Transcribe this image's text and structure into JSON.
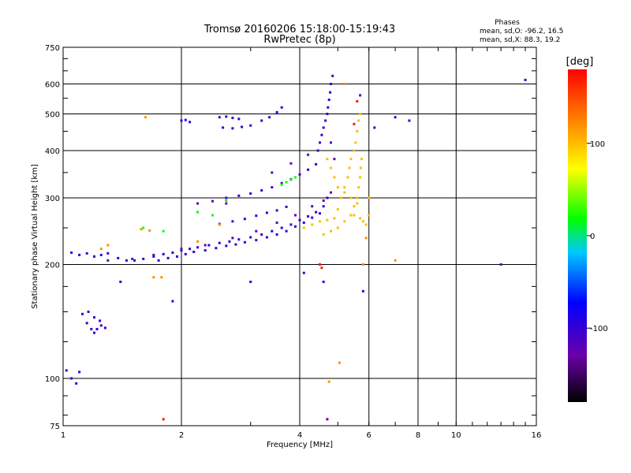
{
  "chart_data": {
    "type": "scatter",
    "title": "Tromsø 20160206 15:18:00-15:19:43",
    "subtitle": "RwPretec (8p)",
    "xlabel": "Frequency [MHz]",
    "ylabel": "Stationary phase Virtual Height [km]",
    "x_scale": "log",
    "y_scale": "log",
    "xlim": [
      1,
      16
    ],
    "ylim": [
      75,
      750
    ],
    "x_ticks": [
      1,
      2,
      4,
      6,
      8,
      10,
      16
    ],
    "x_tick_labels": [
      "1",
      "2",
      "4",
      "6",
      "8",
      "10",
      "16"
    ],
    "y_ticks": [
      75,
      100,
      200,
      300,
      400,
      500,
      600,
      750
    ],
    "y_tick_labels": [
      "75",
      "100",
      "200",
      "300",
      "400",
      "500",
      "600",
      "750"
    ],
    "grid": true,
    "info_box": {
      "heading": "Phases",
      "line_o": "mean, sd,O: -96.2, 16.5",
      "line_x": "mean, sd,X:  88.3, 19.2"
    },
    "colorbar": {
      "label": "[deg]",
      "range": [
        -180,
        180
      ],
      "ticks": [
        -100,
        0,
        100
      ],
      "tick_labels": [
        "-100",
        "0",
        "100"
      ],
      "colormap": "rainbow",
      "position": "right"
    },
    "series": [
      {
        "phase_deg": -100,
        "points": [
          [
            1.05,
            215
          ],
          [
            1.1,
            212
          ],
          [
            1.15,
            214
          ],
          [
            1.2,
            210
          ],
          [
            1.25,
            212
          ],
          [
            1.3,
            214
          ],
          [
            1.38,
            208
          ],
          [
            1.45,
            205
          ],
          [
            1.52,
            205
          ],
          [
            1.6,
            207
          ],
          [
            1.7,
            210
          ],
          [
            1.8,
            213
          ],
          [
            1.9,
            215
          ],
          [
            2.0,
            218
          ],
          [
            2.1,
            220
          ],
          [
            2.2,
            222
          ],
          [
            2.35,
            225
          ],
          [
            2.5,
            228
          ],
          [
            2.65,
            230
          ],
          [
            2.8,
            233
          ],
          [
            3.0,
            236
          ],
          [
            3.2,
            240
          ],
          [
            3.4,
            245
          ],
          [
            3.6,
            250
          ],
          [
            3.8,
            255
          ],
          [
            4.0,
            262
          ],
          [
            4.2,
            268
          ],
          [
            4.4,
            275
          ],
          [
            4.6,
            285
          ],
          [
            4.7,
            300
          ],
          [
            1.75,
            205
          ],
          [
            1.85,
            208
          ],
          [
            1.95,
            210
          ],
          [
            2.05,
            213
          ],
          [
            2.15,
            216
          ],
          [
            2.3,
            218
          ],
          [
            2.45,
            221
          ],
          [
            2.6,
            224
          ],
          [
            2.75,
            226
          ],
          [
            2.9,
            229
          ],
          [
            3.1,
            232
          ],
          [
            3.3,
            236
          ],
          [
            3.5,
            240
          ],
          [
            3.7,
            245
          ],
          [
            3.9,
            252
          ],
          [
            4.1,
            258
          ],
          [
            4.3,
            266
          ],
          [
            4.5,
            273
          ],
          [
            2.6,
            300
          ],
          [
            2.8,
            304
          ],
          [
            3.0,
            308
          ],
          [
            3.2,
            314
          ],
          [
            3.4,
            320
          ],
          [
            3.6,
            328
          ],
          [
            3.8,
            336
          ],
          [
            4.0,
            346
          ],
          [
            4.2,
            356
          ],
          [
            4.4,
            368
          ],
          [
            2.5,
            256
          ],
          [
            2.7,
            260
          ],
          [
            2.9,
            264
          ],
          [
            3.1,
            269
          ],
          [
            3.3,
            274
          ],
          [
            3.5,
            278
          ],
          [
            3.7,
            284
          ],
          [
            2.0,
            480
          ],
          [
            2.05,
            482
          ],
          [
            2.1,
            476
          ],
          [
            2.5,
            490
          ],
          [
            2.6,
            492
          ],
          [
            2.7,
            488
          ],
          [
            2.8,
            485
          ],
          [
            2.55,
            460
          ],
          [
            2.7,
            458
          ],
          [
            2.85,
            462
          ],
          [
            3.0,
            466
          ],
          [
            3.2,
            480
          ],
          [
            3.35,
            490
          ],
          [
            3.5,
            505
          ],
          [
            3.6,
            520
          ],
          [
            4.45,
            400
          ],
          [
            4.5,
            420
          ],
          [
            4.55,
            440
          ],
          [
            4.6,
            460
          ],
          [
            4.65,
            480
          ],
          [
            4.7,
            500
          ],
          [
            4.72,
            520
          ],
          [
            4.75,
            545
          ],
          [
            4.78,
            570
          ],
          [
            4.8,
            600
          ],
          [
            4.85,
            630
          ],
          [
            1.12,
            148
          ],
          [
            1.15,
            140
          ],
          [
            1.18,
            135
          ],
          [
            1.2,
            132
          ],
          [
            1.22,
            135
          ],
          [
            1.25,
            138
          ],
          [
            1.28,
            136
          ],
          [
            1.16,
            150
          ],
          [
            1.2,
            145
          ],
          [
            1.24,
            142
          ],
          [
            1.05,
            100
          ],
          [
            1.08,
            97
          ],
          [
            1.1,
            104
          ],
          [
            1.02,
            105
          ],
          [
            1.4,
            180
          ],
          [
            1.9,
            160
          ],
          [
            3.0,
            180
          ],
          [
            4.1,
            190
          ],
          [
            4.6,
            180
          ],
          [
            5.8,
            170
          ],
          [
            6.2,
            460
          ],
          [
            7.0,
            490
          ],
          [
            7.6,
            480
          ],
          [
            15.0,
            615
          ]
        ]
      },
      {
        "phase_deg": -125,
        "points": [
          [
            1.3,
            205
          ],
          [
            1.5,
            207
          ],
          [
            1.7,
            212
          ],
          [
            2.0,
            220
          ],
          [
            2.3,
            225
          ],
          [
            2.7,
            235
          ],
          [
            3.1,
            245
          ],
          [
            3.5,
            258
          ],
          [
            3.9,
            270
          ],
          [
            4.3,
            285
          ],
          [
            4.6,
            295
          ],
          [
            4.8,
            310
          ],
          [
            2.2,
            290
          ],
          [
            2.4,
            294
          ],
          [
            2.6,
            290
          ],
          [
            3.4,
            350
          ],
          [
            3.8,
            370
          ],
          [
            4.2,
            390
          ],
          [
            4.8,
            420
          ],
          [
            4.9,
            380
          ],
          [
            5.7,
            560
          ],
          [
            4.7,
            78
          ],
          [
            13.0,
            200
          ]
        ]
      },
      {
        "phase_deg": 100,
        "points": [
          [
            4.1,
            250
          ],
          [
            4.3,
            255
          ],
          [
            4.5,
            260
          ],
          [
            4.7,
            262
          ],
          [
            4.9,
            265
          ],
          [
            5.0,
            280
          ],
          [
            5.1,
            300
          ],
          [
            5.2,
            320
          ],
          [
            5.3,
            340
          ],
          [
            5.35,
            360
          ],
          [
            5.4,
            380
          ],
          [
            5.5,
            400
          ],
          [
            5.55,
            420
          ],
          [
            5.6,
            450
          ],
          [
            5.65,
            480
          ],
          [
            5.7,
            500
          ],
          [
            4.6,
            240
          ],
          [
            4.8,
            245
          ],
          [
            5.0,
            250
          ],
          [
            5.2,
            260
          ],
          [
            5.4,
            270
          ],
          [
            5.5,
            285
          ],
          [
            5.6,
            300
          ],
          [
            5.65,
            320
          ],
          [
            5.7,
            340
          ],
          [
            5.72,
            360
          ],
          [
            5.75,
            380
          ],
          [
            5.6,
            290
          ],
          [
            5.4,
            300
          ],
          [
            5.2,
            310
          ],
          [
            5.0,
            320
          ],
          [
            4.9,
            340
          ],
          [
            4.8,
            360
          ],
          [
            4.7,
            380
          ],
          [
            5.5,
            270
          ],
          [
            5.7,
            265
          ],
          [
            5.8,
            260
          ],
          [
            5.9,
            255
          ],
          [
            6.0,
            270
          ],
          [
            6.0,
            300
          ]
        ]
      },
      {
        "phase_deg": 120,
        "points": [
          [
            5.2,
            600
          ],
          [
            5.8,
            200
          ],
          [
            5.9,
            235
          ],
          [
            7.0,
            205
          ],
          [
            1.78,
            185
          ],
          [
            1.7,
            185
          ],
          [
            1.62,
            490
          ],
          [
            4.75,
            98
          ],
          [
            5.05,
            110
          ],
          [
            1.3,
            225
          ],
          [
            1.25,
            220
          ],
          [
            1.58,
            248
          ],
          [
            1.66,
            246
          ],
          [
            2.2,
            230
          ],
          [
            2.5,
            255
          ]
        ]
      },
      {
        "phase_deg": 20,
        "points": [
          [
            3.7,
            330
          ],
          [
            3.8,
            335
          ],
          [
            3.9,
            340
          ],
          [
            3.6,
            325
          ],
          [
            2.2,
            275
          ],
          [
            2.4,
            270
          ],
          [
            2.6,
            295
          ],
          [
            1.6,
            250
          ],
          [
            1.8,
            245
          ]
        ]
      },
      {
        "phase_deg": 170,
        "points": [
          [
            1.8,
            78
          ],
          [
            4.5,
            200
          ],
          [
            4.55,
            196
          ],
          [
            5.5,
            470
          ],
          [
            5.6,
            540
          ]
        ]
      }
    ]
  }
}
